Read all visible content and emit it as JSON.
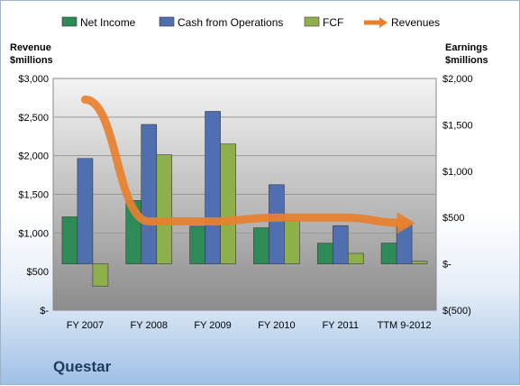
{
  "company": "Questar",
  "chart_data": {
    "type": "bar",
    "categories": [
      "FY 2007",
      "FY 2008",
      "FY 2009",
      "FY 2010",
      "FY 2011",
      "TTM 9-2012"
    ],
    "series": [
      {
        "name": "Net Income",
        "axis": "right",
        "kind": "bar",
        "color": "#2e8b57",
        "values": [
          507,
          683,
          406,
          389,
          223,
          224
        ]
      },
      {
        "name": "Cash from Operations",
        "axis": "right",
        "kind": "bar",
        "color": "#4f6fb0",
        "values": [
          1137,
          1504,
          1645,
          854,
          412,
          431
        ]
      },
      {
        "name": "FCF",
        "axis": "right",
        "kind": "bar",
        "color": "#8db04a",
        "values": [
          -239,
          1177,
          1293,
          468,
          113,
          28
        ]
      },
      {
        "name": "Revenues",
        "axis": "left",
        "kind": "line",
        "color": "#e8802e",
        "values": [
          2727,
          1150,
          1150,
          1200,
          1200,
          1130
        ]
      }
    ],
    "left_axis": {
      "title_line1": "Revenue",
      "title_line2": "$millions",
      "min": 0,
      "max": 3000,
      "step": 500,
      "tick_labels": [
        "$-",
        "$500",
        "$1,000",
        "$1,500",
        "$2,000",
        "$2,500",
        "$3,000"
      ]
    },
    "right_axis": {
      "title_line1": "Earnings",
      "title_line2": "$millions",
      "min": -500,
      "max": 2000,
      "step": 500,
      "tick_labels": [
        "$(500)",
        "$-",
        "$500",
        "$1,000",
        "$1,500",
        "$2,000"
      ]
    },
    "legend": [
      "Net Income",
      "Cash from Operations",
      "FCF",
      "Revenues"
    ],
    "legend_position": "top",
    "grid": true
  }
}
